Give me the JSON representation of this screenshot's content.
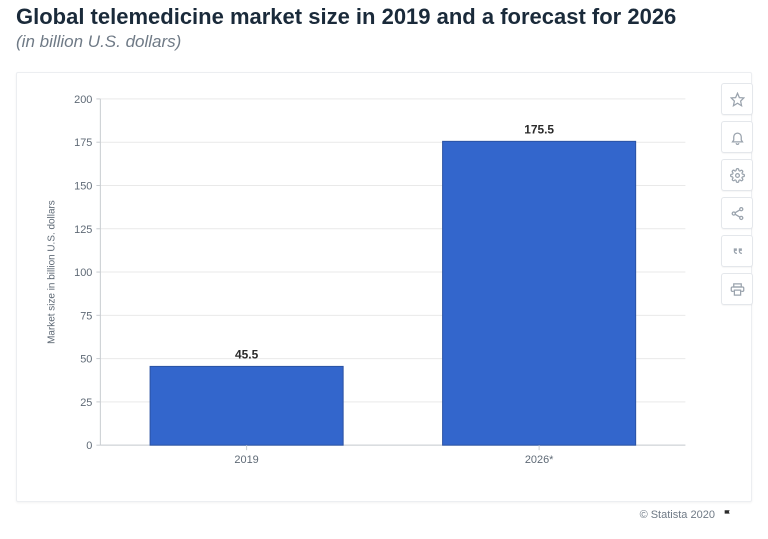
{
  "header": {
    "title": "Global telemedicine market size in 2019 and a forecast for 2026",
    "subtitle": "(in billion U.S. dollars)"
  },
  "chart": {
    "type": "bar",
    "categories": [
      "2019",
      "2026*"
    ],
    "values": [
      45.5,
      175.5
    ],
    "value_labels": [
      "45.5",
      "175.5"
    ],
    "bar_color": "#3366cc",
    "bar_border_color": "#2a52a3",
    "ylabel": "Market size in billion U.S. dollars",
    "ylim": [
      0,
      200
    ],
    "ytick_step": 25,
    "yticks": [
      0,
      25,
      50,
      75,
      100,
      125,
      150,
      175,
      200
    ],
    "grid_color": "#e9e9e9",
    "axis_color": "#c8ccd0",
    "background_color": "#ffffff",
    "label_fontsize": 11,
    "ylabel_fontsize": 10,
    "value_label_fontsize": 12,
    "value_label_color": "#2b2b2b",
    "tick_label_color": "#5f6a76",
    "bar_width_ratio": 0.66
  },
  "icons": {
    "star": "star-icon",
    "bell": "bell-icon",
    "gear": "gear-icon",
    "share": "share-icon",
    "quote": "quote-icon",
    "print": "print-icon"
  },
  "attribution": {
    "text": "© Statista 2020"
  }
}
